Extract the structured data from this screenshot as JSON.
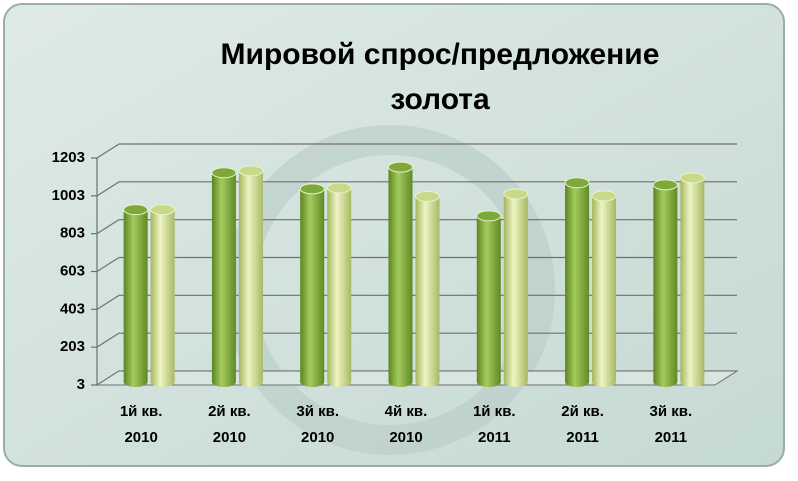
{
  "chart_data": {
    "type": "bar",
    "title": [
      "Мировой спрос/предложение",
      "золота"
    ],
    "categories": [
      [
        "1й кв.",
        "2010"
      ],
      [
        "2й кв.",
        "2010"
      ],
      [
        "3й кв.",
        "2010"
      ],
      [
        "4й кв.",
        "2010"
      ],
      [
        "1й кв.",
        "2011"
      ],
      [
        "2й кв.",
        "2011"
      ],
      [
        "3й кв.",
        "2011"
      ]
    ],
    "series": [
      {
        "color": "#7fa83a",
        "values": [
          930,
          1125,
          1040,
          1155,
          897,
          1072,
          1061
        ]
      },
      {
        "color": "#c8d98a",
        "values": [
          930,
          1135,
          1045,
          1000,
          1013,
          1003,
          1098
        ]
      }
    ],
    "ylim": [
      3,
      1203
    ],
    "yticks": [
      3,
      203,
      403,
      603,
      803,
      1003,
      1203
    ],
    "grid": true
  }
}
